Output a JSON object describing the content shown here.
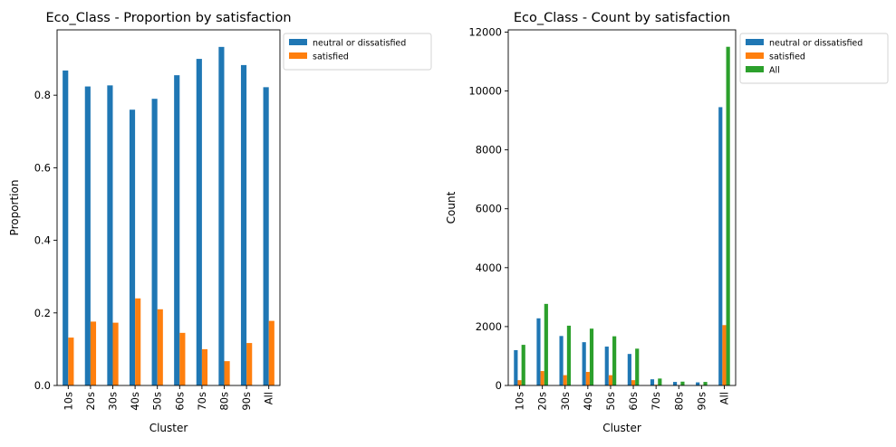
{
  "chart_data": [
    {
      "type": "bar",
      "title": "Eco_Class - Proportion by satisfaction",
      "xlabel": "Cluster",
      "ylabel": "Proportion",
      "categories": [
        "10s",
        "20s",
        "30s",
        "40s",
        "50s",
        "60s",
        "70s",
        "80s",
        "90s",
        "All"
      ],
      "series": [
        {
          "name": "neutral or dissatisfied",
          "color": "#1f77b4",
          "values": [
            0.868,
            0.824,
            0.827,
            0.76,
            0.79,
            0.855,
            0.9,
            0.933,
            0.883,
            0.822
          ]
        },
        {
          "name": "satisfied",
          "color": "#ff7f0e",
          "values": [
            0.132,
            0.176,
            0.173,
            0.24,
            0.21,
            0.145,
            0.1,
            0.067,
            0.117,
            0.178
          ]
        }
      ],
      "ylim": [
        0,
        0.98
      ],
      "yticks": [
        0.0,
        0.2,
        0.4,
        0.6,
        0.8
      ],
      "ytick_labels": [
        "0.0",
        "0.2",
        "0.4",
        "0.6",
        "0.8"
      ],
      "legend_position": "outside-top-right",
      "grid": false
    },
    {
      "type": "bar",
      "title": "Eco_Class - Count by satisfaction",
      "xlabel": "Cluster",
      "ylabel": "Count",
      "categories": [
        "10s",
        "20s",
        "30s",
        "40s",
        "50s",
        "60s",
        "70s",
        "80s",
        "90s",
        "All"
      ],
      "series": [
        {
          "name": "neutral or dissatisfied",
          "color": "#1f77b4",
          "values": [
            1200,
            2280,
            1680,
            1470,
            1320,
            1070,
            210,
            120,
            105,
            9450
          ]
        },
        {
          "name": "satisfied",
          "color": "#ff7f0e",
          "values": [
            180,
            490,
            350,
            460,
            350,
            180,
            25,
            10,
            15,
            2050
          ]
        },
        {
          "name": "All",
          "color": "#2ca02c",
          "values": [
            1380,
            2770,
            2030,
            1930,
            1670,
            1250,
            235,
            130,
            120,
            11500
          ]
        }
      ],
      "ylim": [
        0,
        12075
      ],
      "yticks": [
        0,
        2000,
        4000,
        6000,
        8000,
        10000,
        12000
      ],
      "ytick_labels": [
        "0",
        "2000",
        "4000",
        "6000",
        "8000",
        "10000",
        "12000"
      ],
      "legend_position": "outside-top-right",
      "grid": false
    }
  ]
}
